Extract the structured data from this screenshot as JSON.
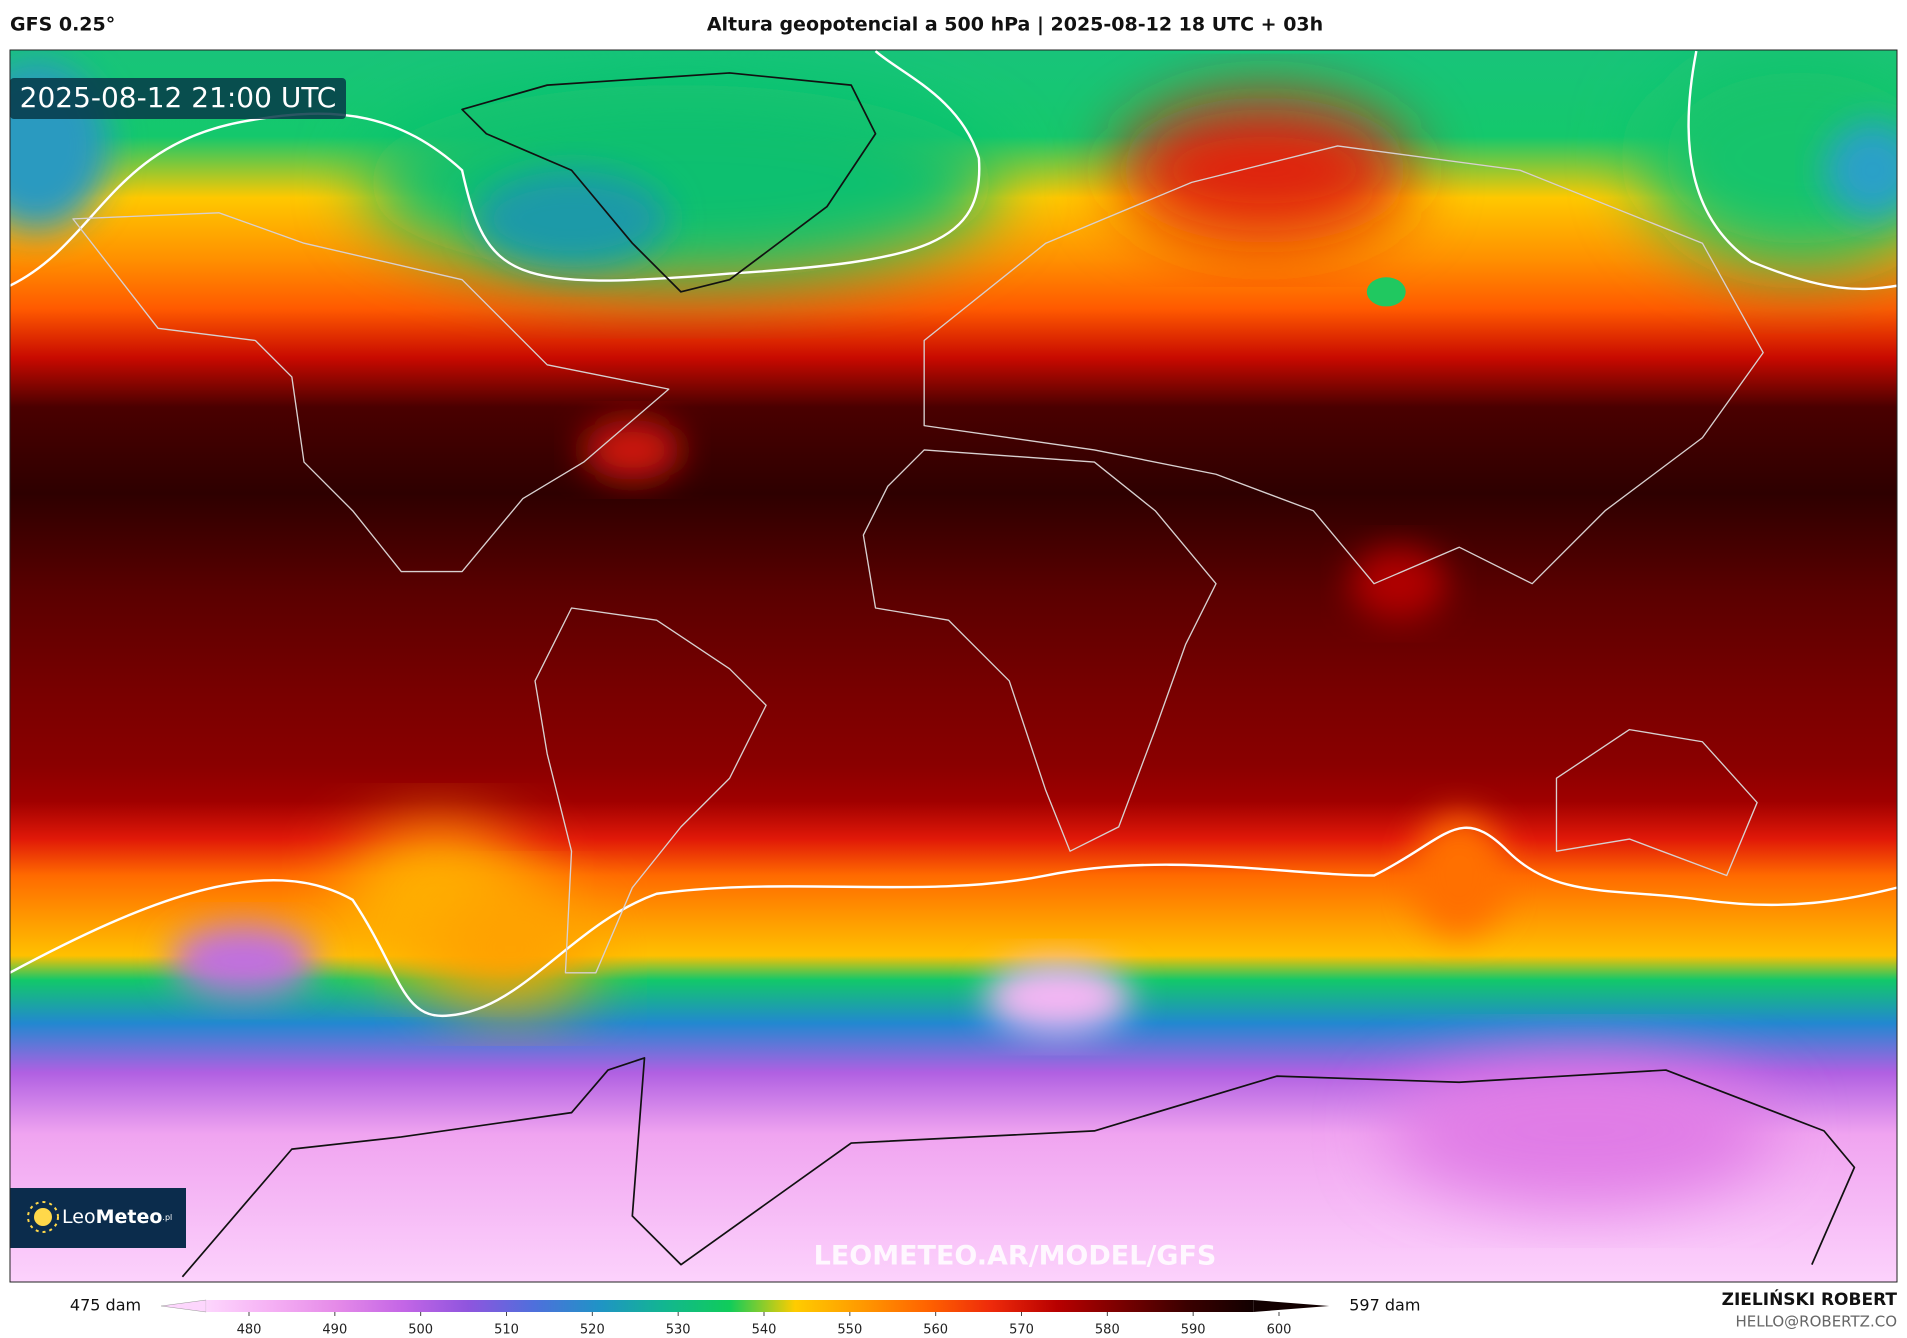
{
  "header": {
    "model": "GFS 0.25°",
    "title": "Altura geopotencial a 500 hPa | 2025-08-12 18 UTC + 03h"
  },
  "map": {
    "timestamp": "2025-08-12 21:00 UTC",
    "watermark": "LEOMETEO.AR/MODEL/GFS",
    "logo_light": "Leo",
    "logo_bold": "Meteo",
    "logo_suffix": ".pl"
  },
  "colorbar": {
    "min_label": "475 dam",
    "max_label": "597 dam",
    "range": [
      475,
      597
    ],
    "ticks": [
      480,
      490,
      500,
      510,
      520,
      530,
      540,
      550,
      560,
      570,
      580,
      590,
      600
    ],
    "colors": [
      "#fdd6fd",
      "#f5b0f4",
      "#e58ae8",
      "#c466e6",
      "#8f55de",
      "#4f6fdc",
      "#2093c6",
      "#12b690",
      "#10cc5a",
      "#ffcc00",
      "#ff9a00",
      "#ff6400",
      "#ee2a0a",
      "#b80000",
      "#780000",
      "#3a0000",
      "#120000"
    ]
  },
  "credits": {
    "author": "ZIELIŃSKI ROBERT",
    "email": "HELLO@ROBERTZ.CO"
  }
}
